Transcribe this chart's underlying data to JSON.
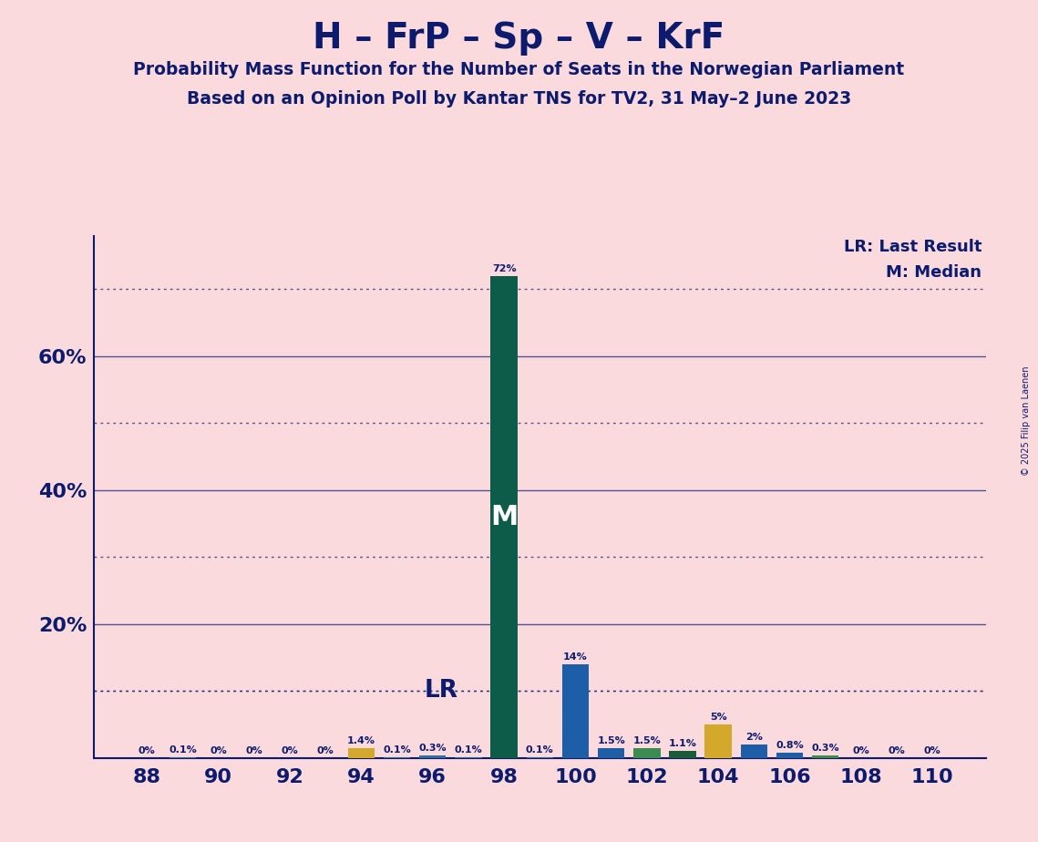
{
  "title": "H – FrP – Sp – V – KrF",
  "subtitle1": "Probability Mass Function for the Number of Seats in the Norwegian Parliament",
  "subtitle2": "Based on an Opinion Poll by Kantar TNS for TV2, 31 May–2 June 2023",
  "copyright": "© 2025 Filip van Laenen",
  "background_color": "#FADADD",
  "text_color": "#0D1B6E",
  "bar_data": [
    {
      "seat": 88,
      "prob": 0.0,
      "color": "#2E6FA3"
    },
    {
      "seat": 89,
      "prob": 0.1,
      "color": "#2E6FA3"
    },
    {
      "seat": 90,
      "prob": 0.0,
      "color": "#2E6FA3"
    },
    {
      "seat": 91,
      "prob": 0.0,
      "color": "#2E6FA3"
    },
    {
      "seat": 92,
      "prob": 0.0,
      "color": "#2E6FA3"
    },
    {
      "seat": 93,
      "prob": 0.0,
      "color": "#2E6FA3"
    },
    {
      "seat": 94,
      "prob": 1.4,
      "color": "#D4A82A"
    },
    {
      "seat": 95,
      "prob": 0.1,
      "color": "#2E6FA3"
    },
    {
      "seat": 96,
      "prob": 0.3,
      "color": "#2E6FA3"
    },
    {
      "seat": 97,
      "prob": 0.1,
      "color": "#2E6FA3"
    },
    {
      "seat": 98,
      "prob": 72.0,
      "color": "#0D5C4A"
    },
    {
      "seat": 99,
      "prob": 0.1,
      "color": "#2E6FA3"
    },
    {
      "seat": 100,
      "prob": 14.0,
      "color": "#1E5EA8"
    },
    {
      "seat": 101,
      "prob": 1.5,
      "color": "#1E5EA8"
    },
    {
      "seat": 102,
      "prob": 1.5,
      "color": "#3A8C50"
    },
    {
      "seat": 103,
      "prob": 1.1,
      "color": "#1A5C3A"
    },
    {
      "seat": 104,
      "prob": 5.0,
      "color": "#D4A82A"
    },
    {
      "seat": 105,
      "prob": 2.0,
      "color": "#1E5EA8"
    },
    {
      "seat": 106,
      "prob": 0.8,
      "color": "#1E5EA8"
    },
    {
      "seat": 107,
      "prob": 0.3,
      "color": "#3A8C50"
    },
    {
      "seat": 108,
      "prob": 0.0,
      "color": "#2E6FA3"
    },
    {
      "seat": 109,
      "prob": 0.0,
      "color": "#2E6FA3"
    },
    {
      "seat": 110,
      "prob": 0.0,
      "color": "#2E6FA3"
    }
  ],
  "median_seat": 98,
  "lr_level": 10.0,
  "lr_label": "LR",
  "median_label": "M",
  "solid_gridlines": [
    20,
    40,
    60
  ],
  "dotted_gridlines": [
    10,
    30,
    50,
    70
  ],
  "ytick_positions": [
    20,
    40,
    60
  ],
  "ytick_labels": [
    "20%",
    "40%",
    "60%"
  ],
  "xticks": [
    88,
    90,
    92,
    94,
    96,
    98,
    100,
    102,
    104,
    106,
    108,
    110
  ],
  "legend_lr": "LR: Last Result",
  "legend_m": "M: Median",
  "grid_color": "#0D1B6E",
  "xlim": [
    86.5,
    111.5
  ],
  "ylim": [
    0,
    78
  ]
}
